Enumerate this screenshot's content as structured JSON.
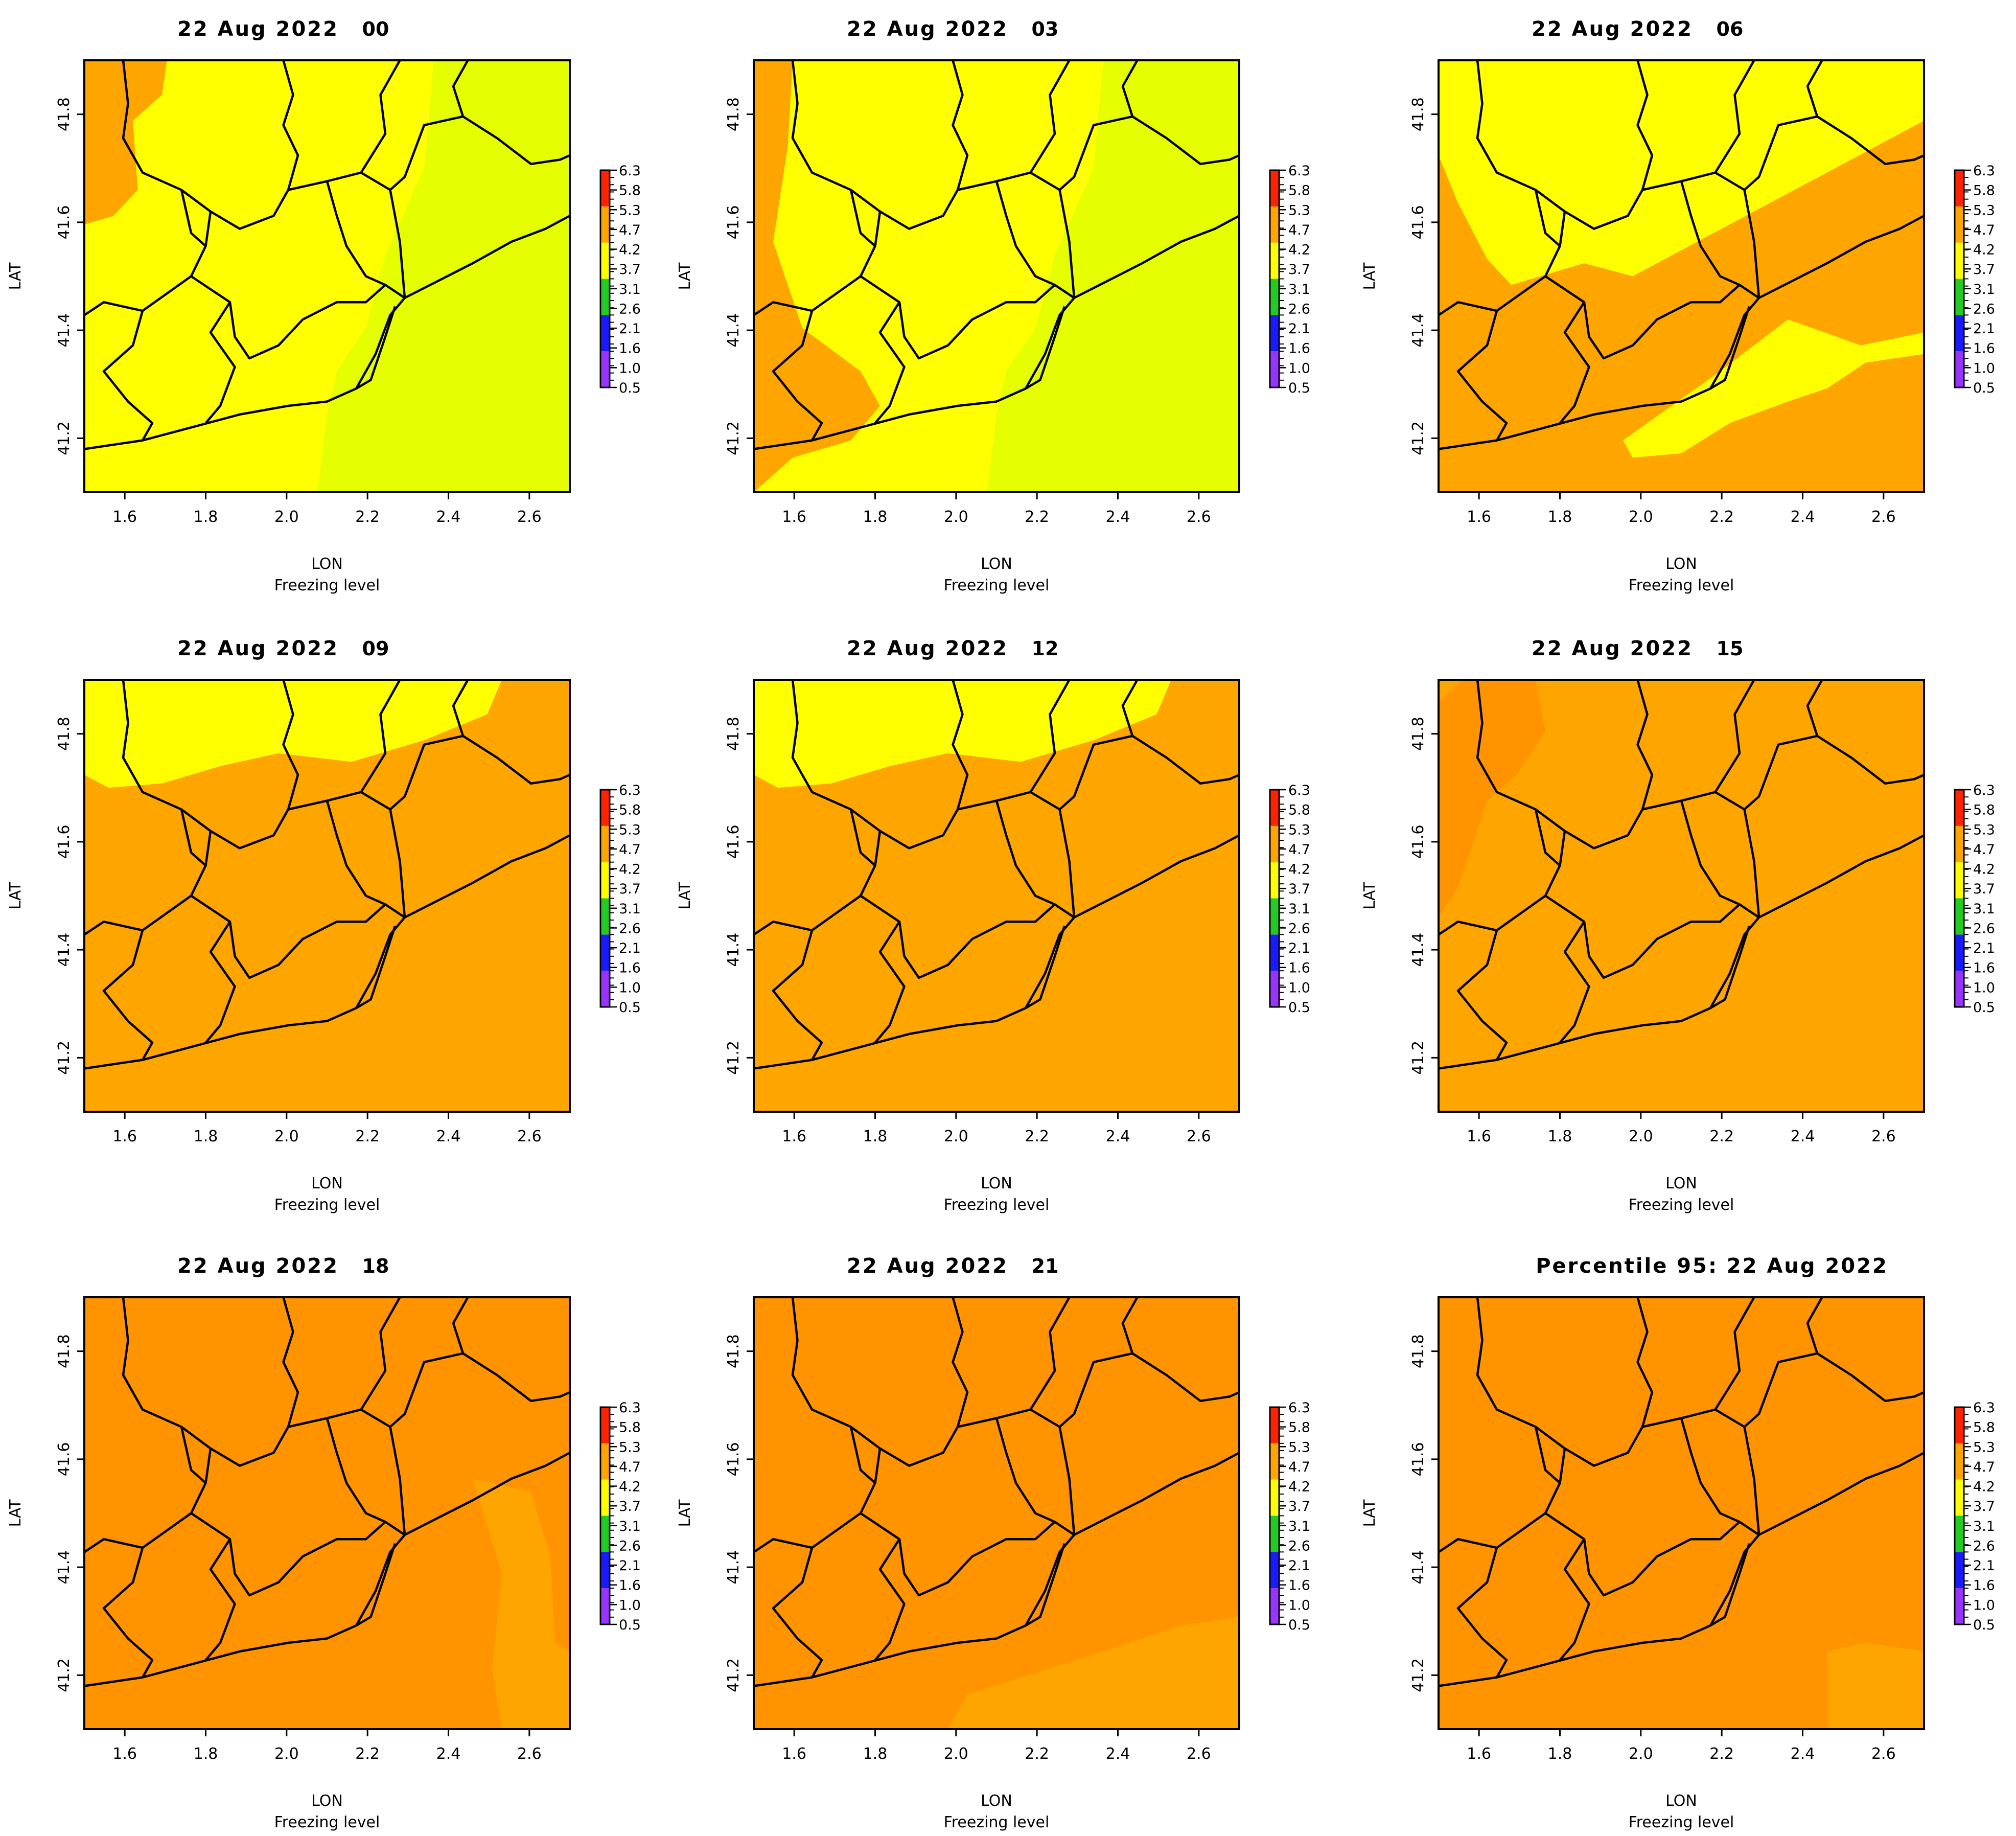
{
  "colors": {
    "bg": "#ffffff",
    "axis": "#000000",
    "border": "#000000",
    "yellow": "#ffff00",
    "lime": "#e6ff00",
    "orange": "#ffa500",
    "dark_orange": "#ff9400",
    "scale": [
      "#9933ff",
      "#1a1aff",
      "#22cc22",
      "#ffff00",
      "#ffa500",
      "#ff2200"
    ]
  },
  "axes": {
    "x_label": "LON",
    "y_label": "LAT",
    "x_ticks": [
      "1.6",
      "1.8",
      "2.0",
      "2.2",
      "2.4",
      "2.6"
    ],
    "y_ticks": [
      "41.2",
      "41.4",
      "41.6",
      "41.8"
    ],
    "xlim": [
      1.5,
      2.7
    ],
    "ylim": [
      41.1,
      41.9
    ]
  },
  "colorbar": {
    "labels": [
      "6.3",
      "5.8",
      "5.3",
      "4.7",
      "4.2",
      "3.7",
      "3.1",
      "2.6",
      "2.1",
      "1.6",
      "1.0",
      "0.5"
    ]
  },
  "variable_name": "Freezing level",
  "panels": [
    {
      "title_date": "22 Aug 2022",
      "title_hour": "00",
      "base": "lime",
      "shading": [
        {
          "region": "plains",
          "color": "yellow"
        },
        {
          "region": "northwest-corner",
          "color": "orange"
        }
      ]
    },
    {
      "title_date": "22 Aug 2022",
      "title_hour": "03",
      "base": "lime",
      "shading": [
        {
          "region": "plains",
          "color": "yellow"
        },
        {
          "region": "west-strip",
          "color": "orange"
        }
      ]
    },
    {
      "title_date": "22 Aug 2022",
      "title_hour": "06",
      "base": "orange",
      "shading": [
        {
          "region": "north-half",
          "color": "yellow"
        },
        {
          "region": "coast-band",
          "color": "yellow"
        }
      ]
    },
    {
      "title_date": "22 Aug 2022",
      "title_hour": "09",
      "base": "orange",
      "shading": [
        {
          "region": "north-band",
          "color": "yellow"
        }
      ]
    },
    {
      "title_date": "22 Aug 2022",
      "title_hour": "12",
      "base": "orange",
      "shading": [
        {
          "region": "north-band",
          "color": "yellow"
        }
      ]
    },
    {
      "title_date": "22 Aug 2022",
      "title_hour": "15",
      "base": "orange",
      "shading": [
        {
          "region": "northwest-patches",
          "color": "dark_orange"
        }
      ]
    },
    {
      "title_date": "22 Aug 2022",
      "title_hour": "18",
      "base": "dark_orange",
      "shading": [
        {
          "region": "east-sea",
          "color": "orange"
        }
      ]
    },
    {
      "title_date": "22 Aug 2022",
      "title_hour": "21",
      "base": "dark_orange",
      "shading": [
        {
          "region": "south-sea",
          "color": "orange"
        }
      ]
    },
    {
      "title_date": "Percentile 95: 22 Aug 2022",
      "title_hour": "",
      "base": "dark_orange",
      "shading": [
        {
          "region": "southeast-sea",
          "color": "orange"
        }
      ]
    }
  ]
}
